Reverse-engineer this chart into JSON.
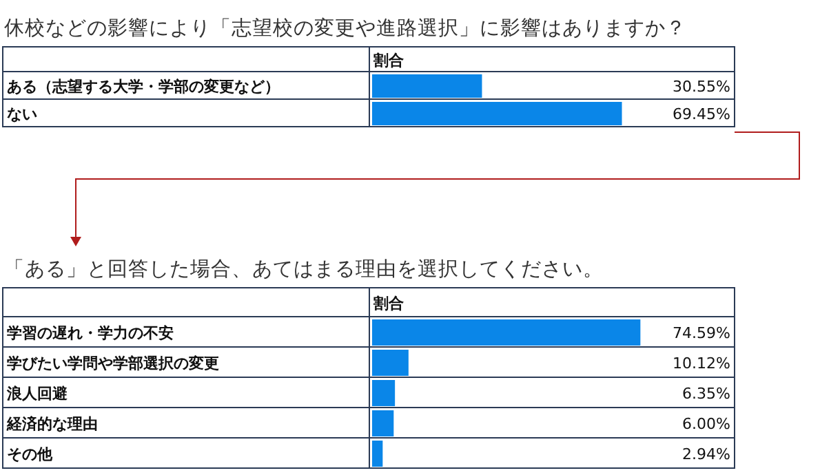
{
  "chart_data": [
    {
      "type": "bar",
      "orientation": "horizontal",
      "title": "休校などの影響により「志望校の変更や進路選択」に影響はありますか？",
      "xlabel": "割合",
      "categories": [
        "ある（志望する大学・学部の変更など）",
        "ない"
      ],
      "values": [
        30.55,
        69.45
      ],
      "value_labels": [
        "30.55%",
        "69.45%"
      ],
      "color": "#0a86e8",
      "xlim": [
        0,
        100
      ]
    },
    {
      "type": "bar",
      "orientation": "horizontal",
      "title": "「ある」と回答した場合、あてはまる理由を選択してください。",
      "xlabel": "割合",
      "categories": [
        "学習の遅れ・学力の不安",
        "学びたい学問や学部選択の変更",
        "浪人回避",
        "経済的な理由",
        "その他"
      ],
      "values": [
        74.59,
        10.12,
        6.35,
        6.0,
        2.94
      ],
      "value_labels": [
        "74.59%",
        "10.12%",
        "6.35%",
        "6.00%",
        "2.94%"
      ],
      "color": "#0a86e8",
      "xlim": [
        0,
        100
      ]
    }
  ]
}
